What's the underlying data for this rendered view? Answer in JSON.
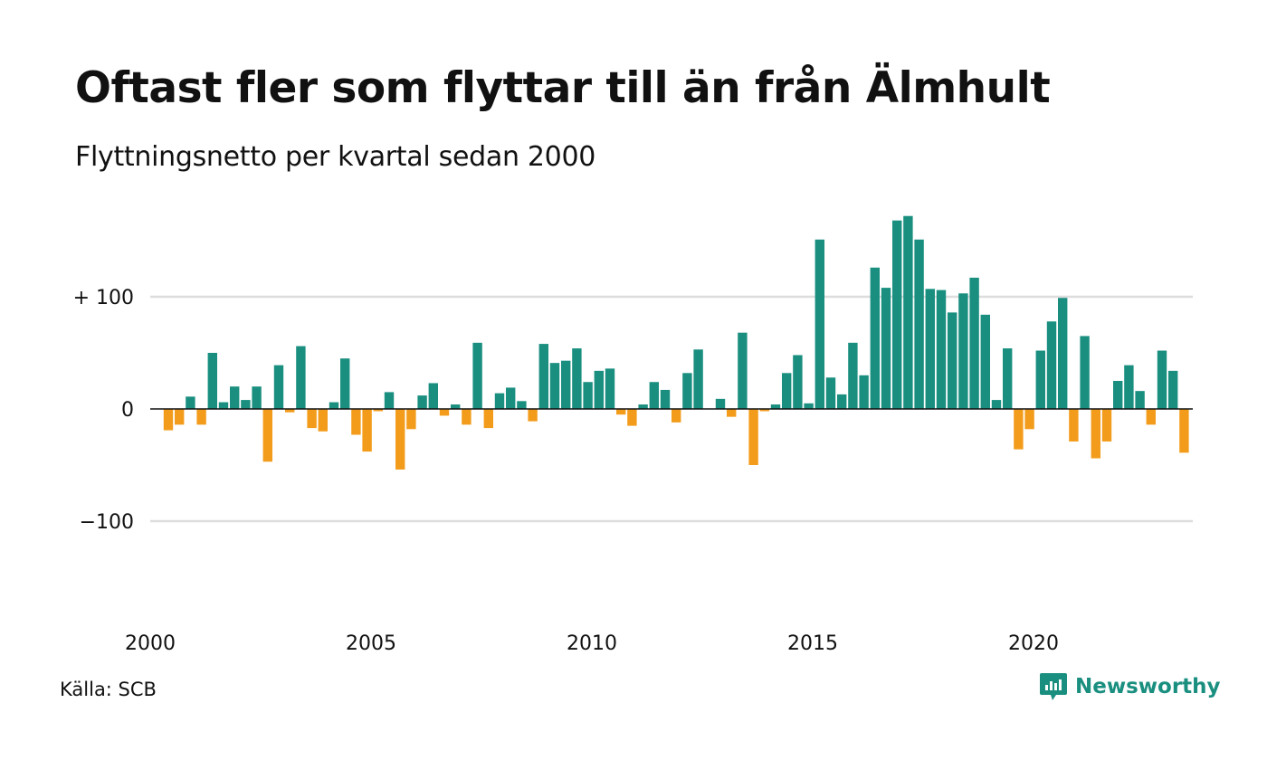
{
  "header": {
    "title": "Oftast fler som flyttar till än från Älmhult",
    "subtitle": "Flyttningsnetto per kvartal sedan 2000"
  },
  "footer": {
    "source": "Källa: SCB",
    "brand": "Newsworthy",
    "brand_icon": "newsworthy-logo-icon"
  },
  "colors": {
    "positive": "#1a8f80",
    "negative": "#f39c1c",
    "grid": "#dddddd",
    "axis": "#111111",
    "brand": "#1a8f80"
  },
  "chart_data": {
    "type": "bar",
    "title": "Oftast fler som flyttar till än från Älmhult",
    "subtitle": "Flyttningsnetto per kvartal sedan 2000",
    "xlabel": "",
    "ylabel": "",
    "ylim": [
      -180,
      180
    ],
    "grid": true,
    "x_ticks": [
      "2000",
      "2005",
      "2010",
      "2015",
      "2020"
    ],
    "y_ticks": [
      {
        "value": 100,
        "label": "+ 100"
      },
      {
        "value": 0,
        "label": "0"
      },
      {
        "value": -100,
        "label": "−100"
      }
    ],
    "start_year": 2000,
    "period": "quarter",
    "series": [
      {
        "values": [
          -19,
          -14,
          11,
          -14,
          50,
          6,
          20,
          8,
          20,
          -47,
          39,
          -3,
          56,
          -17,
          -20,
          6,
          45,
          -23,
          -38,
          -2,
          15,
          -54,
          -18,
          12,
          23,
          -6,
          4,
          -14,
          59,
          -17,
          14,
          19,
          7,
          -11,
          58,
          41,
          43,
          54,
          24,
          34,
          36,
          -5,
          -15,
          4,
          24,
          17,
          -12,
          32,
          53,
          0,
          9,
          -7,
          68,
          -50,
          -2,
          4,
          32,
          48,
          5,
          151,
          28,
          13,
          59,
          30,
          126,
          108,
          168,
          172,
          151,
          107,
          106,
          86,
          103,
          117,
          84,
          8,
          54,
          -36,
          -18,
          52,
          78,
          99,
          -29,
          65,
          -44,
          -29,
          25,
          39,
          16,
          -14,
          52,
          34,
          -39
        ]
      }
    ]
  }
}
